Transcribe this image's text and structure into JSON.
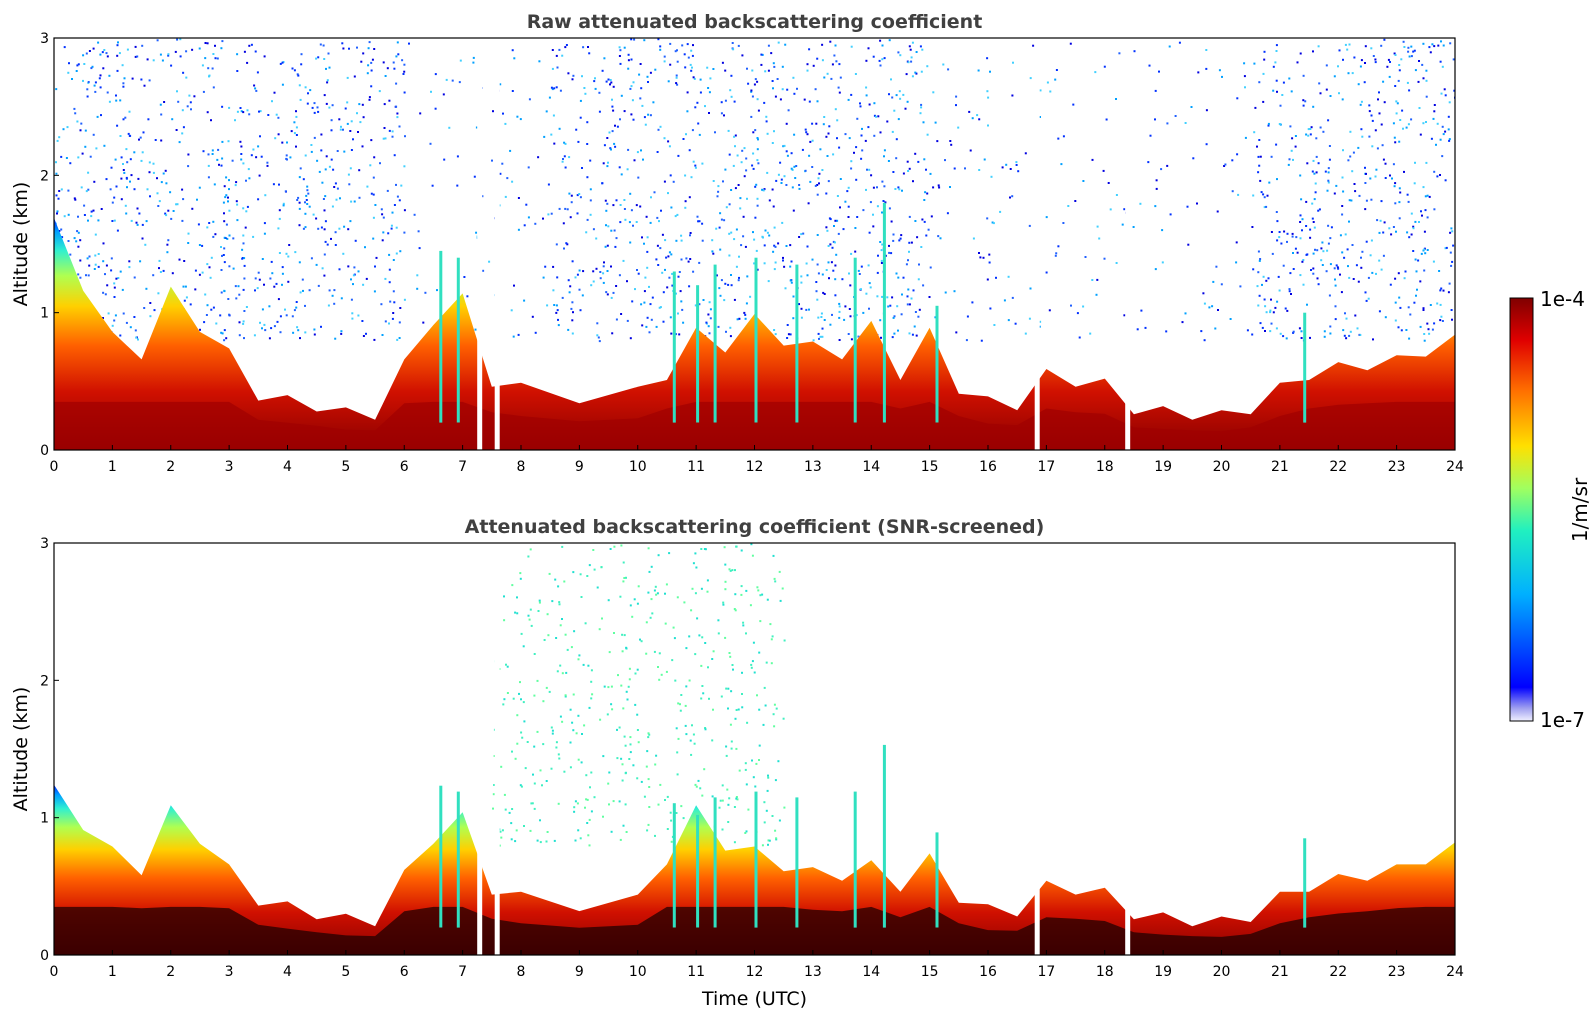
{
  "chart_data": [
    {
      "type": "heatmap",
      "title": "Raw attenuated backscattering coefficient",
      "xlabel": "",
      "ylabel": "Altitude (km)",
      "xlim": [
        0,
        24
      ],
      "ylim": [
        0,
        3
      ],
      "xticks": [
        "0",
        "1",
        "2",
        "3",
        "4",
        "5",
        "6",
        "7",
        "8",
        "9",
        "10",
        "11",
        "12",
        "13",
        "14",
        "15",
        "16",
        "17",
        "18",
        "19",
        "20",
        "21",
        "22",
        "23",
        "24"
      ],
      "yticks": [
        "0",
        "1",
        "2",
        "3"
      ],
      "boundary_layer_top_km": [
        [
          0,
          1.65
        ],
        [
          0.5,
          1.2
        ],
        [
          1.0,
          0.82
        ],
        [
          1.5,
          0.7
        ],
        [
          2.0,
          1.15
        ],
        [
          2.5,
          0.9
        ],
        [
          3.0,
          0.7
        ],
        [
          3.5,
          0.4
        ],
        [
          4.0,
          0.36
        ],
        [
          4.5,
          0.32
        ],
        [
          5.0,
          0.27
        ],
        [
          5.5,
          0.26
        ],
        [
          6.0,
          0.62
        ],
        [
          6.5,
          0.95
        ],
        [
          7.0,
          1.1
        ],
        [
          7.5,
          0.5
        ],
        [
          8.0,
          0.45
        ],
        [
          9.0,
          0.38
        ],
        [
          10.0,
          0.42
        ],
        [
          10.5,
          0.55
        ],
        [
          11.0,
          0.85
        ],
        [
          11.5,
          0.75
        ],
        [
          12.0,
          0.95
        ],
        [
          12.5,
          0.8
        ],
        [
          13.0,
          0.75
        ],
        [
          13.5,
          0.7
        ],
        [
          14.0,
          0.9
        ],
        [
          14.5,
          0.55
        ],
        [
          15.0,
          0.85
        ],
        [
          15.5,
          0.45
        ],
        [
          16.0,
          0.35
        ],
        [
          16.5,
          0.33
        ],
        [
          17.0,
          0.55
        ],
        [
          17.5,
          0.5
        ],
        [
          18.0,
          0.48
        ],
        [
          18.5,
          0.3
        ],
        [
          19.0,
          0.28
        ],
        [
          19.5,
          0.26
        ],
        [
          20.0,
          0.25
        ],
        [
          20.5,
          0.3
        ],
        [
          21.0,
          0.45
        ],
        [
          21.5,
          0.55
        ],
        [
          22.0,
          0.6
        ],
        [
          22.5,
          0.62
        ],
        [
          23.0,
          0.65
        ],
        [
          23.5,
          0.72
        ],
        [
          24.0,
          0.8
        ]
      ],
      "screened": false
    },
    {
      "type": "heatmap",
      "title": "Attenuated backscattering coefficient (SNR-screened)",
      "xlabel": "Time (UTC)",
      "ylabel": "Altitude (km)",
      "xlim": [
        0,
        24
      ],
      "ylim": [
        0,
        3
      ],
      "xticks": [
        "0",
        "1",
        "2",
        "3",
        "4",
        "5",
        "6",
        "7",
        "8",
        "9",
        "10",
        "11",
        "12",
        "13",
        "14",
        "15",
        "16",
        "17",
        "18",
        "19",
        "20",
        "21",
        "22",
        "23",
        "24"
      ],
      "yticks": [
        "0",
        "1",
        "2",
        "3"
      ],
      "boundary_layer_top_km": [
        [
          0,
          1.2
        ],
        [
          0.5,
          0.95
        ],
        [
          1.0,
          0.75
        ],
        [
          1.5,
          0.62
        ],
        [
          2.0,
          1.05
        ],
        [
          2.5,
          0.85
        ],
        [
          3.0,
          0.62
        ],
        [
          3.5,
          0.4
        ],
        [
          4.0,
          0.35
        ],
        [
          4.5,
          0.3
        ],
        [
          5.0,
          0.26
        ],
        [
          5.5,
          0.25
        ],
        [
          6.0,
          0.58
        ],
        [
          6.5,
          0.85
        ],
        [
          7.0,
          1.0
        ],
        [
          7.5,
          0.48
        ],
        [
          8.0,
          0.42
        ],
        [
          9.0,
          0.36
        ],
        [
          10.0,
          0.4
        ],
        [
          10.5,
          0.7
        ],
        [
          11.0,
          1.05
        ],
        [
          11.5,
          0.8
        ],
        [
          12.0,
          0.75
        ],
        [
          12.5,
          0.65
        ],
        [
          13.0,
          0.6
        ],
        [
          13.5,
          0.58
        ],
        [
          14.0,
          0.65
        ],
        [
          14.5,
          0.5
        ],
        [
          15.0,
          0.7
        ],
        [
          15.5,
          0.42
        ],
        [
          16.0,
          0.33
        ],
        [
          16.5,
          0.32
        ],
        [
          17.0,
          0.5
        ],
        [
          17.5,
          0.48
        ],
        [
          18.0,
          0.45
        ],
        [
          18.5,
          0.3
        ],
        [
          19.0,
          0.27
        ],
        [
          19.5,
          0.25
        ],
        [
          20.0,
          0.24
        ],
        [
          20.5,
          0.28
        ],
        [
          21.0,
          0.42
        ],
        [
          21.5,
          0.5
        ],
        [
          22.0,
          0.55
        ],
        [
          22.5,
          0.58
        ],
        [
          23.0,
          0.62
        ],
        [
          23.5,
          0.7
        ],
        [
          24.0,
          0.78
        ]
      ],
      "screened": true
    }
  ],
  "colorbar": {
    "label": "1/m/sr",
    "max_label": "1e-4",
    "min_label": "1e-7",
    "colormap": "jet"
  }
}
